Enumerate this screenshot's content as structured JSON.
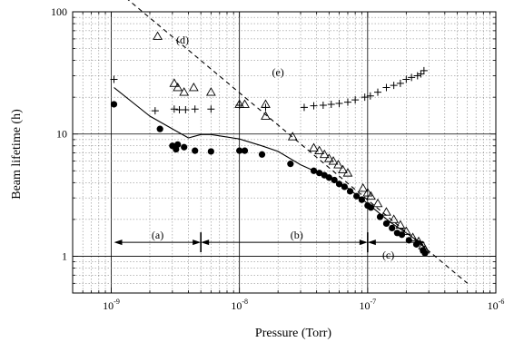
{
  "chart_data": {
    "type": "scatter",
    "x_scale": "log",
    "y_scale": "log",
    "xlim": [
      5e-10,
      1e-06
    ],
    "ylim": [
      0.5,
      100
    ],
    "xlabel": "Pressure (Torr)",
    "ylabel": "Beam  lifetime (h)",
    "grid": true,
    "x_ticks": [
      {
        "value": 1e-09,
        "base": "10",
        "exp": "-9"
      },
      {
        "value": 1e-08,
        "base": "10",
        "exp": "-8"
      },
      {
        "value": 1e-07,
        "base": "10",
        "exp": "-7"
      },
      {
        "value": 1e-06,
        "base": "10",
        "exp": "-6"
      }
    ],
    "y_ticks": [
      {
        "value": 1,
        "label": "1"
      },
      {
        "value": 10,
        "label": "10"
      },
      {
        "value": 100,
        "label": "100"
      }
    ],
    "series": [
      {
        "marker": "filled-circle",
        "points": [
          [
            1.05e-09,
            17.5
          ],
          [
            2.4e-09,
            11.0
          ],
          [
            3e-09,
            8.0
          ],
          [
            3.2e-09,
            7.5
          ],
          [
            3.3e-09,
            8.2
          ],
          [
            3.7e-09,
            7.8
          ],
          [
            4.5e-09,
            7.3
          ],
          [
            6e-09,
            7.2
          ],
          [
            1e-08,
            7.3
          ],
          [
            1.1e-08,
            7.3
          ],
          [
            1.5e-08,
            6.8
          ],
          [
            2.5e-08,
            5.7
          ],
          [
            3.8e-08,
            5.0
          ],
          [
            4.2e-08,
            4.8
          ],
          [
            4.6e-08,
            4.6
          ],
          [
            5e-08,
            4.4
          ],
          [
            5.5e-08,
            4.2
          ],
          [
            6e-08,
            3.9
          ],
          [
            6.6e-08,
            3.7
          ],
          [
            7.3e-08,
            3.4
          ],
          [
            8.2e-08,
            3.1
          ],
          [
            9e-08,
            2.9
          ],
          [
            1e-07,
            2.6
          ],
          [
            1.06e-07,
            2.5
          ],
          [
            1.25e-07,
            2.1
          ],
          [
            1.4e-07,
            1.85
          ],
          [
            1.55e-07,
            1.7
          ],
          [
            1.7e-07,
            1.55
          ],
          [
            1.85e-07,
            1.5
          ],
          [
            2.1e-07,
            1.35
          ],
          [
            2.4e-07,
            1.25
          ],
          [
            2.7e-07,
            1.12
          ],
          [
            2.8e-07,
            1.06
          ]
        ]
      },
      {
        "marker": "open-triangle",
        "points": [
          [
            2.3e-09,
            63
          ],
          [
            3.1e-09,
            26
          ],
          [
            3.3e-09,
            24
          ],
          [
            3.7e-09,
            22
          ],
          [
            4.4e-09,
            24
          ],
          [
            6e-09,
            22
          ],
          [
            1e-08,
            17.5
          ],
          [
            1.1e-08,
            17.5
          ],
          [
            1.6e-08,
            14
          ],
          [
            1.6e-08,
            17.5
          ],
          [
            2.6e-08,
            9.5
          ],
          [
            3.8e-08,
            7.7
          ],
          [
            4.2e-08,
            7.3
          ],
          [
            4.6e-08,
            6.8
          ],
          [
            5e-08,
            6.3
          ],
          [
            5.4e-08,
            6.0
          ],
          [
            5.9e-08,
            5.6
          ],
          [
            6.4e-08,
            5.1
          ],
          [
            7e-08,
            4.8
          ],
          [
            9.2e-08,
            3.6
          ],
          [
            1e-07,
            3.3
          ],
          [
            1.06e-07,
            3.1
          ],
          [
            1.2e-07,
            2.7
          ],
          [
            1.4e-07,
            2.3
          ],
          [
            1.6e-07,
            2.0
          ],
          [
            1.8e-07,
            1.8
          ],
          [
            2e-07,
            1.6
          ],
          [
            2.25e-07,
            1.42
          ],
          [
            2.5e-07,
            1.32
          ],
          [
            2.7e-07,
            1.22
          ],
          [
            2.8e-07,
            1.13
          ]
        ]
      },
      {
        "marker": "plus",
        "points": [
          [
            1.05e-09,
            28
          ],
          [
            2.2e-09,
            15.5
          ],
          [
            3.1e-09,
            16
          ],
          [
            3.4e-09,
            15.8
          ],
          [
            3.8e-09,
            15.8
          ],
          [
            4.5e-09,
            16
          ],
          [
            6e-09,
            16
          ],
          [
            1e-08,
            17.2
          ],
          [
            1.6e-08,
            16.5
          ],
          [
            3.2e-08,
            16.5
          ],
          [
            3.8e-08,
            17.0
          ],
          [
            4.5e-08,
            17.2
          ],
          [
            5.2e-08,
            17.5
          ],
          [
            6e-08,
            17.8
          ],
          [
            7e-08,
            18.2
          ],
          [
            8e-08,
            19.0
          ],
          [
            9.5e-08,
            20
          ],
          [
            1.05e-07,
            20.5
          ],
          [
            1.2e-07,
            22
          ],
          [
            1.4e-07,
            24
          ],
          [
            1.6e-07,
            25
          ],
          [
            1.8e-07,
            26
          ],
          [
            2e-07,
            28
          ],
          [
            2.2e-07,
            29
          ],
          [
            2.45e-07,
            30
          ],
          [
            2.6e-07,
            31
          ],
          [
            2.75e-07,
            33
          ]
        ]
      },
      {
        "style": "solid-line",
        "points": [
          [
            1.05e-09,
            24
          ],
          [
            2e-09,
            14
          ],
          [
            3e-09,
            11
          ],
          [
            4e-09,
            9.3
          ],
          [
            5e-09,
            9.9
          ],
          [
            6e-09,
            9.9
          ],
          [
            1e-08,
            9.1
          ],
          [
            1.5e-08,
            8.0
          ],
          [
            2e-08,
            7.2
          ],
          [
            3e-08,
            5.6
          ],
          [
            5e-08,
            4.4
          ],
          [
            7e-08,
            3.6
          ],
          [
            1e-07,
            2.7
          ],
          [
            1.5e-07,
            1.9
          ],
          [
            2e-07,
            1.55
          ],
          [
            2.5e-07,
            1.32
          ],
          [
            2.8e-07,
            1.18
          ]
        ]
      },
      {
        "style": "dashed-line",
        "points": [
          [
            1.3e-09,
            130
          ],
          [
            6e-07,
            0.6
          ]
        ]
      }
    ],
    "annotations": [
      {
        "text": "(a)",
        "x": 2.3e-09,
        "y": 1.4
      },
      {
        "text": "(b)",
        "x": 2.8e-08,
        "y": 1.4
      },
      {
        "text": "(c)",
        "x": 1.45e-07,
        "y": 0.96
      },
      {
        "text": "(d)",
        "x": 3.6e-09,
        "y": 55
      },
      {
        "text": "(e)",
        "x": 2e-08,
        "y": 30
      }
    ],
    "ranges": [
      {
        "from": 1.05e-09,
        "to": 5e-09,
        "y": 1.3
      },
      {
        "from": 5e-09,
        "to": 1e-07,
        "y": 1.3
      },
      {
        "from": 1e-07,
        "to": 2.8e-07,
        "y": 1.3
      }
    ]
  }
}
